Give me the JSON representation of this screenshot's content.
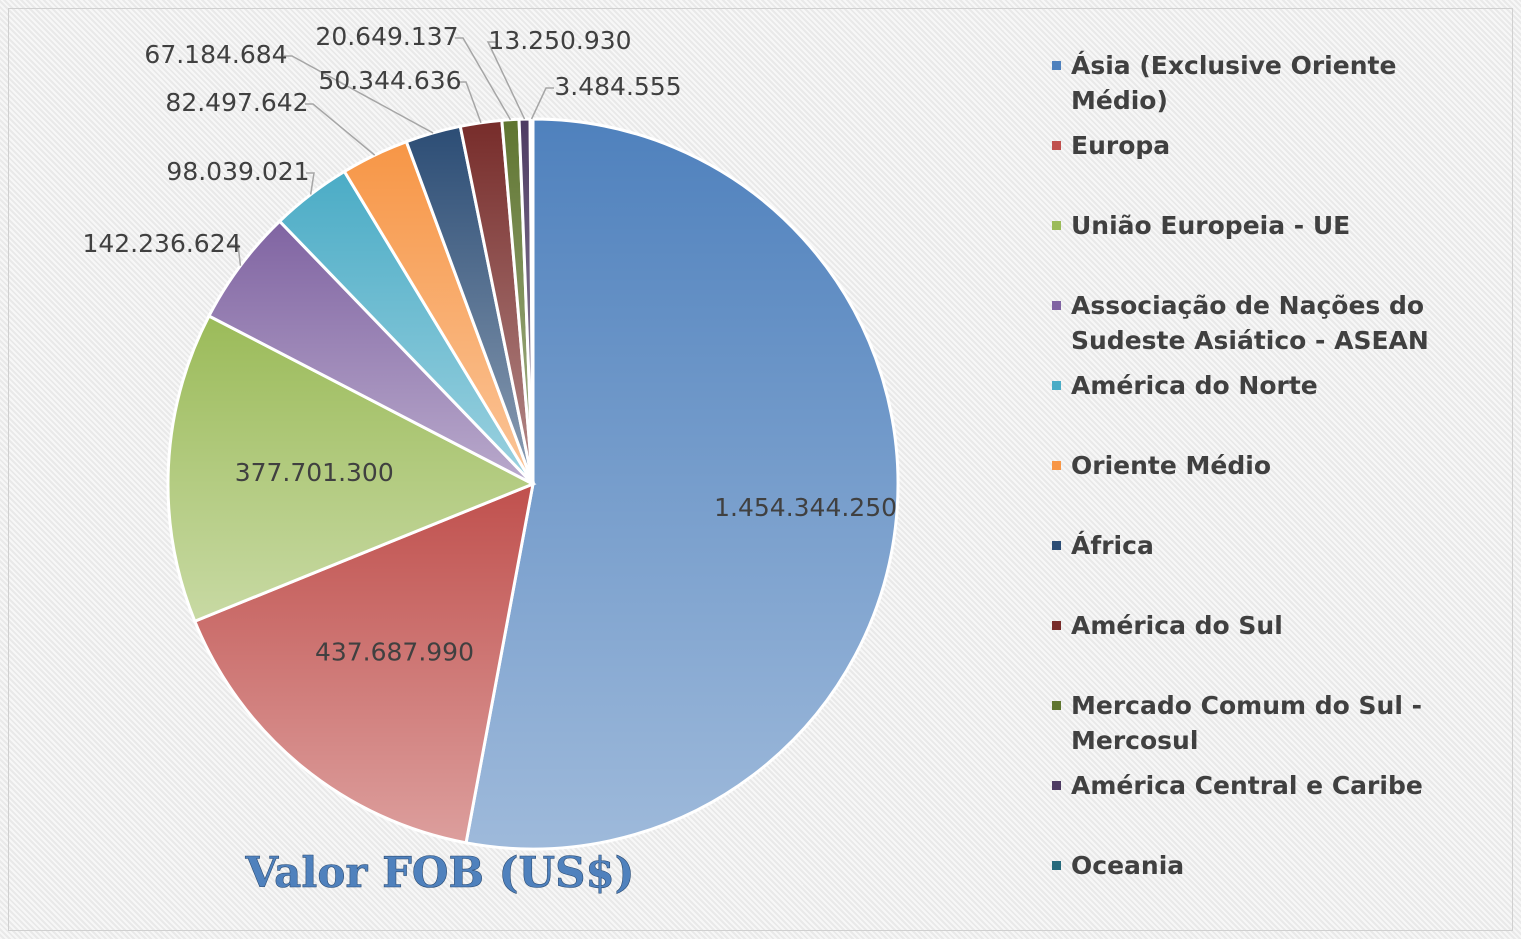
{
  "chart_data": {
    "type": "pie",
    "title": "Valor FOB (US$)",
    "categories": [
      "Ásia (Exclusive Oriente Médio)",
      " Europa",
      "União Europeia - UE",
      "Associação de Nações do Sudeste Asiático - ASEAN",
      "América do Norte",
      "Oriente Médio",
      "África",
      "América do Sul",
      "Mercado Comum do Sul - Mercosul",
      "América Central e Caribe",
      "Oceania"
    ],
    "values": [
      1454344250,
      437687990,
      377701300,
      142236624,
      98039021,
      82497642,
      67184684,
      50344636,
      20649137,
      13250930,
      3484555
    ],
    "value_labels": [
      "1.454.344.250",
      "437.687.990",
      "377.701.300",
      "142.236.624",
      "98.039.021",
      "82.497.642",
      "67.184.684",
      "50.344.636",
      "20.649.137",
      "13.250.930",
      "3.484.555"
    ],
    "colors": [
      "#4f81bd",
      "#c0504d",
      "#9bbb59",
      "#8064a2",
      "#4bacc6",
      "#f79646",
      "#2c4d75",
      "#772c2a",
      "#5f7530",
      "#4d3b62",
      "#276a7c"
    ],
    "legend": "right"
  }
}
